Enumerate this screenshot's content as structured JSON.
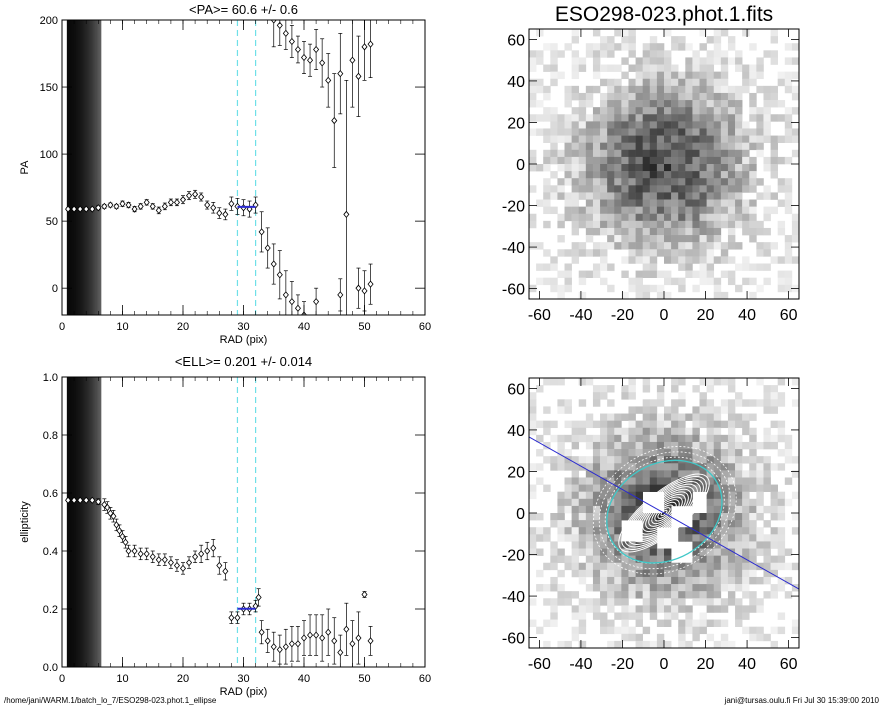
{
  "footer": {
    "left": "/home/jani/WARM.1/batch_lo_7/ESO298-023.phot.1_ellipse",
    "right": "jani@tursas.oulu.fi  Fri Jul 30 15:39:00 2010"
  },
  "chart_data": [
    {
      "id": "pa",
      "type": "scatter",
      "title": "<PA>=  60.6 +/-   0.6",
      "xlabel": "RAD (pix)",
      "ylabel": "PA",
      "xlim": [
        0,
        60
      ],
      "ylim": [
        -20,
        200
      ],
      "xticks": [
        0,
        10,
        20,
        30,
        40,
        50,
        60
      ],
      "yticks": [
        0,
        50,
        100,
        150,
        200
      ],
      "reference_lines_x": [
        29,
        32
      ],
      "fit_segment": {
        "x": [
          29,
          32
        ],
        "y": 60.6
      },
      "series": [
        {
          "marker": "diamond",
          "points": [
            [
              1,
              59,
              1
            ],
            [
              2,
              59,
              1
            ],
            [
              3,
              59,
              1
            ],
            [
              4,
              59,
              1
            ],
            [
              5,
              59,
              1
            ],
            [
              6,
              60,
              1.5
            ],
            [
              7,
              61,
              1.5
            ],
            [
              8,
              62,
              1.5
            ],
            [
              9,
              61,
              1.5
            ],
            [
              10,
              63,
              2
            ],
            [
              11,
              62,
              2
            ],
            [
              12,
              59,
              2
            ],
            [
              13,
              61,
              2
            ],
            [
              14,
              64,
              2
            ],
            [
              15,
              61,
              2
            ],
            [
              16,
              58,
              2.5
            ],
            [
              17,
              61,
              2.5
            ],
            [
              18,
              64,
              2.5
            ],
            [
              19,
              64,
              2.5
            ],
            [
              20,
              66,
              3
            ],
            [
              21,
              69,
              3
            ],
            [
              22,
              70,
              3
            ],
            [
              23,
              68,
              3
            ],
            [
              24,
              62,
              3
            ],
            [
              25,
              60,
              4
            ],
            [
              26,
              56,
              4
            ],
            [
              27,
              55,
              4
            ],
            [
              28,
              63,
              5
            ],
            [
              29,
              61,
              6
            ],
            [
              30,
              60,
              6
            ],
            [
              31,
              59,
              6
            ],
            [
              32,
              62,
              6
            ],
            [
              33,
              42,
              15
            ],
            [
              34,
              30,
              15
            ],
            [
              35,
              18,
              15
            ],
            [
              36,
              10,
              18
            ],
            [
              37,
              -5,
              18
            ],
            [
              38,
              -10,
              15
            ],
            [
              39,
              -15,
              10
            ],
            [
              40,
              -20,
              10
            ],
            [
              35,
              200,
              20
            ],
            [
              36,
              196,
              15
            ],
            [
              37,
              190,
              12
            ],
            [
              38,
              184,
              12
            ],
            [
              39,
              178,
              10
            ],
            [
              40,
              172,
              12
            ],
            [
              41,
              170,
              12
            ],
            [
              42,
              178,
              15
            ],
            [
              43,
              168,
              18
            ],
            [
              44,
              155,
              20
            ],
            [
              45,
              125,
              35
            ],
            [
              46,
              160,
              30
            ],
            [
              47,
              55,
              100
            ],
            [
              48,
              170,
              35
            ],
            [
              49,
              158,
              30
            ],
            [
              50,
              180,
              25
            ],
            [
              51,
              182,
              25
            ],
            [
              42,
              -10,
              10
            ],
            [
              46,
              -5,
              12
            ],
            [
              49,
              0,
              15
            ],
            [
              50,
              -2,
              15
            ],
            [
              51,
              3,
              15
            ]
          ]
        }
      ]
    },
    {
      "id": "ell",
      "type": "scatter",
      "title": "<ELL>= 0.201 +/-  0.014",
      "xlabel": "RAD (pix)",
      "ylabel": "ellipticity",
      "xlim": [
        0,
        60
      ],
      "ylim": [
        0.0,
        1.0
      ],
      "xticks": [
        0,
        10,
        20,
        30,
        40,
        50,
        60
      ],
      "yticks": [
        0.0,
        0.2,
        0.4,
        0.6,
        0.8,
        1.0
      ],
      "reference_lines_x": [
        29,
        32
      ],
      "fit_segment": {
        "x": [
          29,
          32
        ],
        "y": 0.201
      },
      "series": [
        {
          "marker": "diamond",
          "points": [
            [
              1,
              0.575,
              0.005
            ],
            [
              2,
              0.575,
              0.005
            ],
            [
              3,
              0.575,
              0.005
            ],
            [
              4,
              0.575,
              0.005
            ],
            [
              5,
              0.575,
              0.005
            ],
            [
              6,
              0.57,
              0.01
            ],
            [
              7,
              0.56,
              0.02
            ],
            [
              7.5,
              0.55,
              0.02
            ],
            [
              8,
              0.53,
              0.02
            ],
            [
              8.5,
              0.52,
              0.02
            ],
            [
              9,
              0.49,
              0.02
            ],
            [
              9.5,
              0.47,
              0.02
            ],
            [
              10,
              0.45,
              0.02
            ],
            [
              10.5,
              0.43,
              0.02
            ],
            [
              11,
              0.4,
              0.02
            ],
            [
              12,
              0.4,
              0.02
            ],
            [
              13,
              0.39,
              0.02
            ],
            [
              14,
              0.39,
              0.02
            ],
            [
              15,
              0.38,
              0.02
            ],
            [
              16,
              0.37,
              0.02
            ],
            [
              17,
              0.37,
              0.02
            ],
            [
              18,
              0.36,
              0.02
            ],
            [
              19,
              0.35,
              0.02
            ],
            [
              20,
              0.34,
              0.02
            ],
            [
              21,
              0.36,
              0.02
            ],
            [
              22,
              0.38,
              0.02
            ],
            [
              23,
              0.39,
              0.03
            ],
            [
              24,
              0.4,
              0.03
            ],
            [
              25,
              0.41,
              0.03
            ],
            [
              26,
              0.35,
              0.03
            ],
            [
              27,
              0.33,
              0.03
            ],
            [
              28,
              0.17,
              0.02
            ],
            [
              29,
              0.17,
              0.02
            ],
            [
              30,
              0.2,
              0.02
            ],
            [
              31,
              0.2,
              0.02
            ],
            [
              32,
              0.21,
              0.02
            ],
            [
              32.5,
              0.24,
              0.03
            ],
            [
              33,
              0.12,
              0.04
            ],
            [
              34,
              0.09,
              0.04
            ],
            [
              35,
              0.07,
              0.05
            ],
            [
              36,
              0.06,
              0.05
            ],
            [
              37,
              0.07,
              0.06
            ],
            [
              38,
              0.08,
              0.06
            ],
            [
              39,
              0.08,
              0.06
            ],
            [
              40,
              0.1,
              0.06
            ],
            [
              41,
              0.11,
              0.07
            ],
            [
              42,
              0.11,
              0.07
            ],
            [
              43,
              0.1,
              0.08
            ],
            [
              44,
              0.12,
              0.08
            ],
            [
              45,
              0.09,
              0.08
            ],
            [
              46,
              0.05,
              0.06
            ],
            [
              47,
              0.13,
              0.09
            ],
            [
              48,
              0.08,
              0.08
            ],
            [
              49,
              0.1,
              0.09
            ],
            [
              50,
              0.25,
              0.01
            ],
            [
              51,
              0.09,
              0.05
            ]
          ]
        }
      ]
    },
    {
      "id": "img",
      "type": "heatmap",
      "title": "ESO298-023.phot.1.fits",
      "xlim": [
        -65,
        65
      ],
      "ylim": [
        -65,
        65
      ],
      "xticks": [
        -60,
        -40,
        -20,
        0,
        20,
        40,
        60
      ],
      "yticks": [
        -60,
        -40,
        -20,
        0,
        20,
        40,
        60
      ],
      "colormap": "inverted grayscale",
      "source": {
        "center": [
          0,
          0
        ],
        "sigma": 28,
        "peak": 0.72
      }
    },
    {
      "id": "model",
      "type": "heatmap",
      "title": "",
      "xlim": [
        -65,
        65
      ],
      "ylim": [
        -65,
        65
      ],
      "xticks": [
        -60,
        -40,
        -20,
        0,
        20,
        40,
        60
      ],
      "yticks": [
        -60,
        -40,
        -20,
        0,
        20,
        40,
        60
      ],
      "colormap": "inverted grayscale",
      "ellipse_color": "#ffffff",
      "fit_ellipse_color": "#40c8c8",
      "major_axis_color": "#2a2ad0",
      "position_angle_deg": 60.6,
      "ellipticity": 0.201
    }
  ]
}
